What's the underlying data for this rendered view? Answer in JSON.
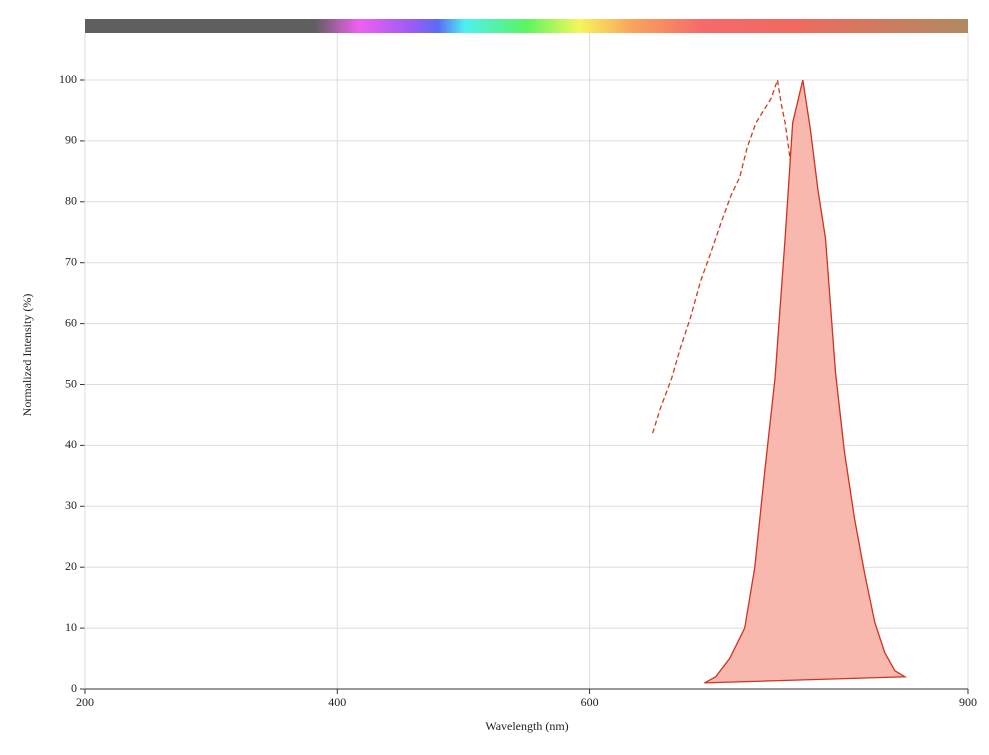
{
  "chart_data": {
    "type": "spectrum",
    "xlabel": "Wavelength (nm)",
    "ylabel": "Normalized Intensity (%)",
    "xlim": [
      200,
      900
    ],
    "xticks": [
      200,
      400,
      600,
      900
    ],
    "ylim": [
      0,
      100
    ],
    "yticks": [
      0,
      10,
      20,
      30,
      40,
      50,
      60,
      70,
      80,
      90,
      100
    ],
    "grid": true,
    "series": [
      {
        "style": "dashed",
        "color": "#d13b1f",
        "x": [
          650,
          656,
          665,
          672,
          680,
          688,
          695,
          705,
          712,
          719,
          725,
          732,
          738,
          744,
          749,
          752,
          755,
          759,
          762,
          767,
          771,
          775,
          779,
          783,
          786,
          789
        ],
        "values": [
          42,
          46,
          51,
          56,
          61,
          67,
          71,
          77,
          81,
          84,
          89,
          93,
          95,
          97,
          100,
          96,
          93,
          87,
          80,
          64,
          55,
          47,
          39,
          31,
          25,
          18
        ]
      },
      {
        "style": "filled",
        "color": "#cc3322",
        "fill": "#f9b8ae",
        "x": [
          691,
          700,
          711,
          723,
          731,
          739,
          747,
          755,
          761,
          769,
          775,
          781,
          787,
          795,
          802,
          810,
          818,
          826,
          834,
          842,
          850
        ],
        "values": [
          1,
          2,
          5,
          10,
          20,
          36,
          51,
          74,
          93,
          100,
          92,
          82,
          74,
          52,
          39,
          28,
          19,
          11,
          6,
          3,
          2
        ]
      }
    ]
  }
}
